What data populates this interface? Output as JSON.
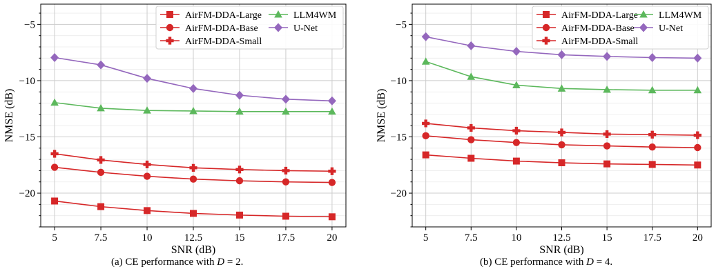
{
  "chart_data": [
    {
      "type": "line",
      "panel_label": "(a)",
      "caption_text": "CE performance with",
      "caption_var": "D",
      "caption_value": "= 2.",
      "xlabel": "SNR (dB)",
      "ylabel": "NMSE (dB)",
      "xlim": [
        4.25,
        20.75
      ],
      "ylim": [
        -23,
        -3.2
      ],
      "xticks": [
        5,
        7.5,
        10,
        12.5,
        15,
        17.5,
        20
      ],
      "xtick_labels": [
        "5",
        "7.5",
        "10",
        "12.5",
        "15",
        "17.5",
        "20"
      ],
      "yticks": [
        -20,
        -15,
        -10,
        -5
      ],
      "ytick_labels": [
        "−20",
        "−15",
        "−10",
        "−5"
      ],
      "grid": true,
      "legend_position": "top-right",
      "x": [
        5,
        7.5,
        10,
        12.5,
        15,
        17.5,
        20
      ],
      "series": [
        {
          "name": "AirFM-DDA-Large",
          "color": "#d62728",
          "marker": "square",
          "values": [
            -20.7,
            -21.2,
            -21.55,
            -21.8,
            -21.95,
            -22.05,
            -22.1
          ]
        },
        {
          "name": "AirFM-DDA-Base",
          "color": "#d62728",
          "marker": "circle",
          "values": [
            -17.7,
            -18.15,
            -18.5,
            -18.75,
            -18.9,
            -19.0,
            -19.05
          ]
        },
        {
          "name": "AirFM-DDA-Small",
          "color": "#d62728",
          "marker": "plus",
          "values": [
            -16.5,
            -17.05,
            -17.45,
            -17.75,
            -17.9,
            -18.0,
            -18.05
          ]
        },
        {
          "name": "LLM4WM",
          "color": "#5cb85c",
          "marker": "triangle",
          "values": [
            -11.95,
            -12.45,
            -12.65,
            -12.7,
            -12.75,
            -12.75,
            -12.75
          ]
        },
        {
          "name": "U-Net",
          "color": "#9467bd",
          "marker": "diamond",
          "values": [
            -7.95,
            -8.6,
            -9.8,
            -10.7,
            -11.3,
            -11.65,
            -11.8
          ]
        }
      ]
    },
    {
      "type": "line",
      "panel_label": "(b)",
      "caption_text": "CE performance with",
      "caption_var": "D",
      "caption_value": "= 4.",
      "xlabel": "SNR (dB)",
      "ylabel": "NMSE (dB)",
      "xlim": [
        4.25,
        20.75
      ],
      "ylim": [
        -23,
        -3.2
      ],
      "xticks": [
        5,
        7.5,
        10,
        12.5,
        15,
        17.5,
        20
      ],
      "xtick_labels": [
        "5",
        "7.5",
        "10",
        "12.5",
        "15",
        "17.5",
        "20"
      ],
      "yticks": [
        -20,
        -15,
        -10,
        -5
      ],
      "ytick_labels": [
        "−20",
        "−15",
        "−10",
        "−5"
      ],
      "grid": true,
      "legend_position": "top-right",
      "x": [
        5,
        7.5,
        10,
        12.5,
        15,
        17.5,
        20
      ],
      "series": [
        {
          "name": "AirFM-DDA-Large",
          "color": "#d62728",
          "marker": "square",
          "values": [
            -16.6,
            -16.9,
            -17.15,
            -17.3,
            -17.4,
            -17.45,
            -17.5
          ]
        },
        {
          "name": "AirFM-DDA-Base",
          "color": "#d62728",
          "marker": "circle",
          "values": [
            -14.9,
            -15.25,
            -15.5,
            -15.7,
            -15.8,
            -15.9,
            -15.95
          ]
        },
        {
          "name": "AirFM-DDA-Small",
          "color": "#d62728",
          "marker": "plus",
          "values": [
            -13.8,
            -14.2,
            -14.45,
            -14.6,
            -14.75,
            -14.8,
            -14.85
          ]
        },
        {
          "name": "LLM4WM",
          "color": "#5cb85c",
          "marker": "triangle",
          "values": [
            -8.3,
            -9.65,
            -10.4,
            -10.7,
            -10.8,
            -10.85,
            -10.85
          ]
        },
        {
          "name": "U-Net",
          "color": "#9467bd",
          "marker": "diamond",
          "values": [
            -6.1,
            -6.9,
            -7.4,
            -7.7,
            -7.85,
            -7.95,
            -8.0
          ]
        }
      ]
    }
  ]
}
